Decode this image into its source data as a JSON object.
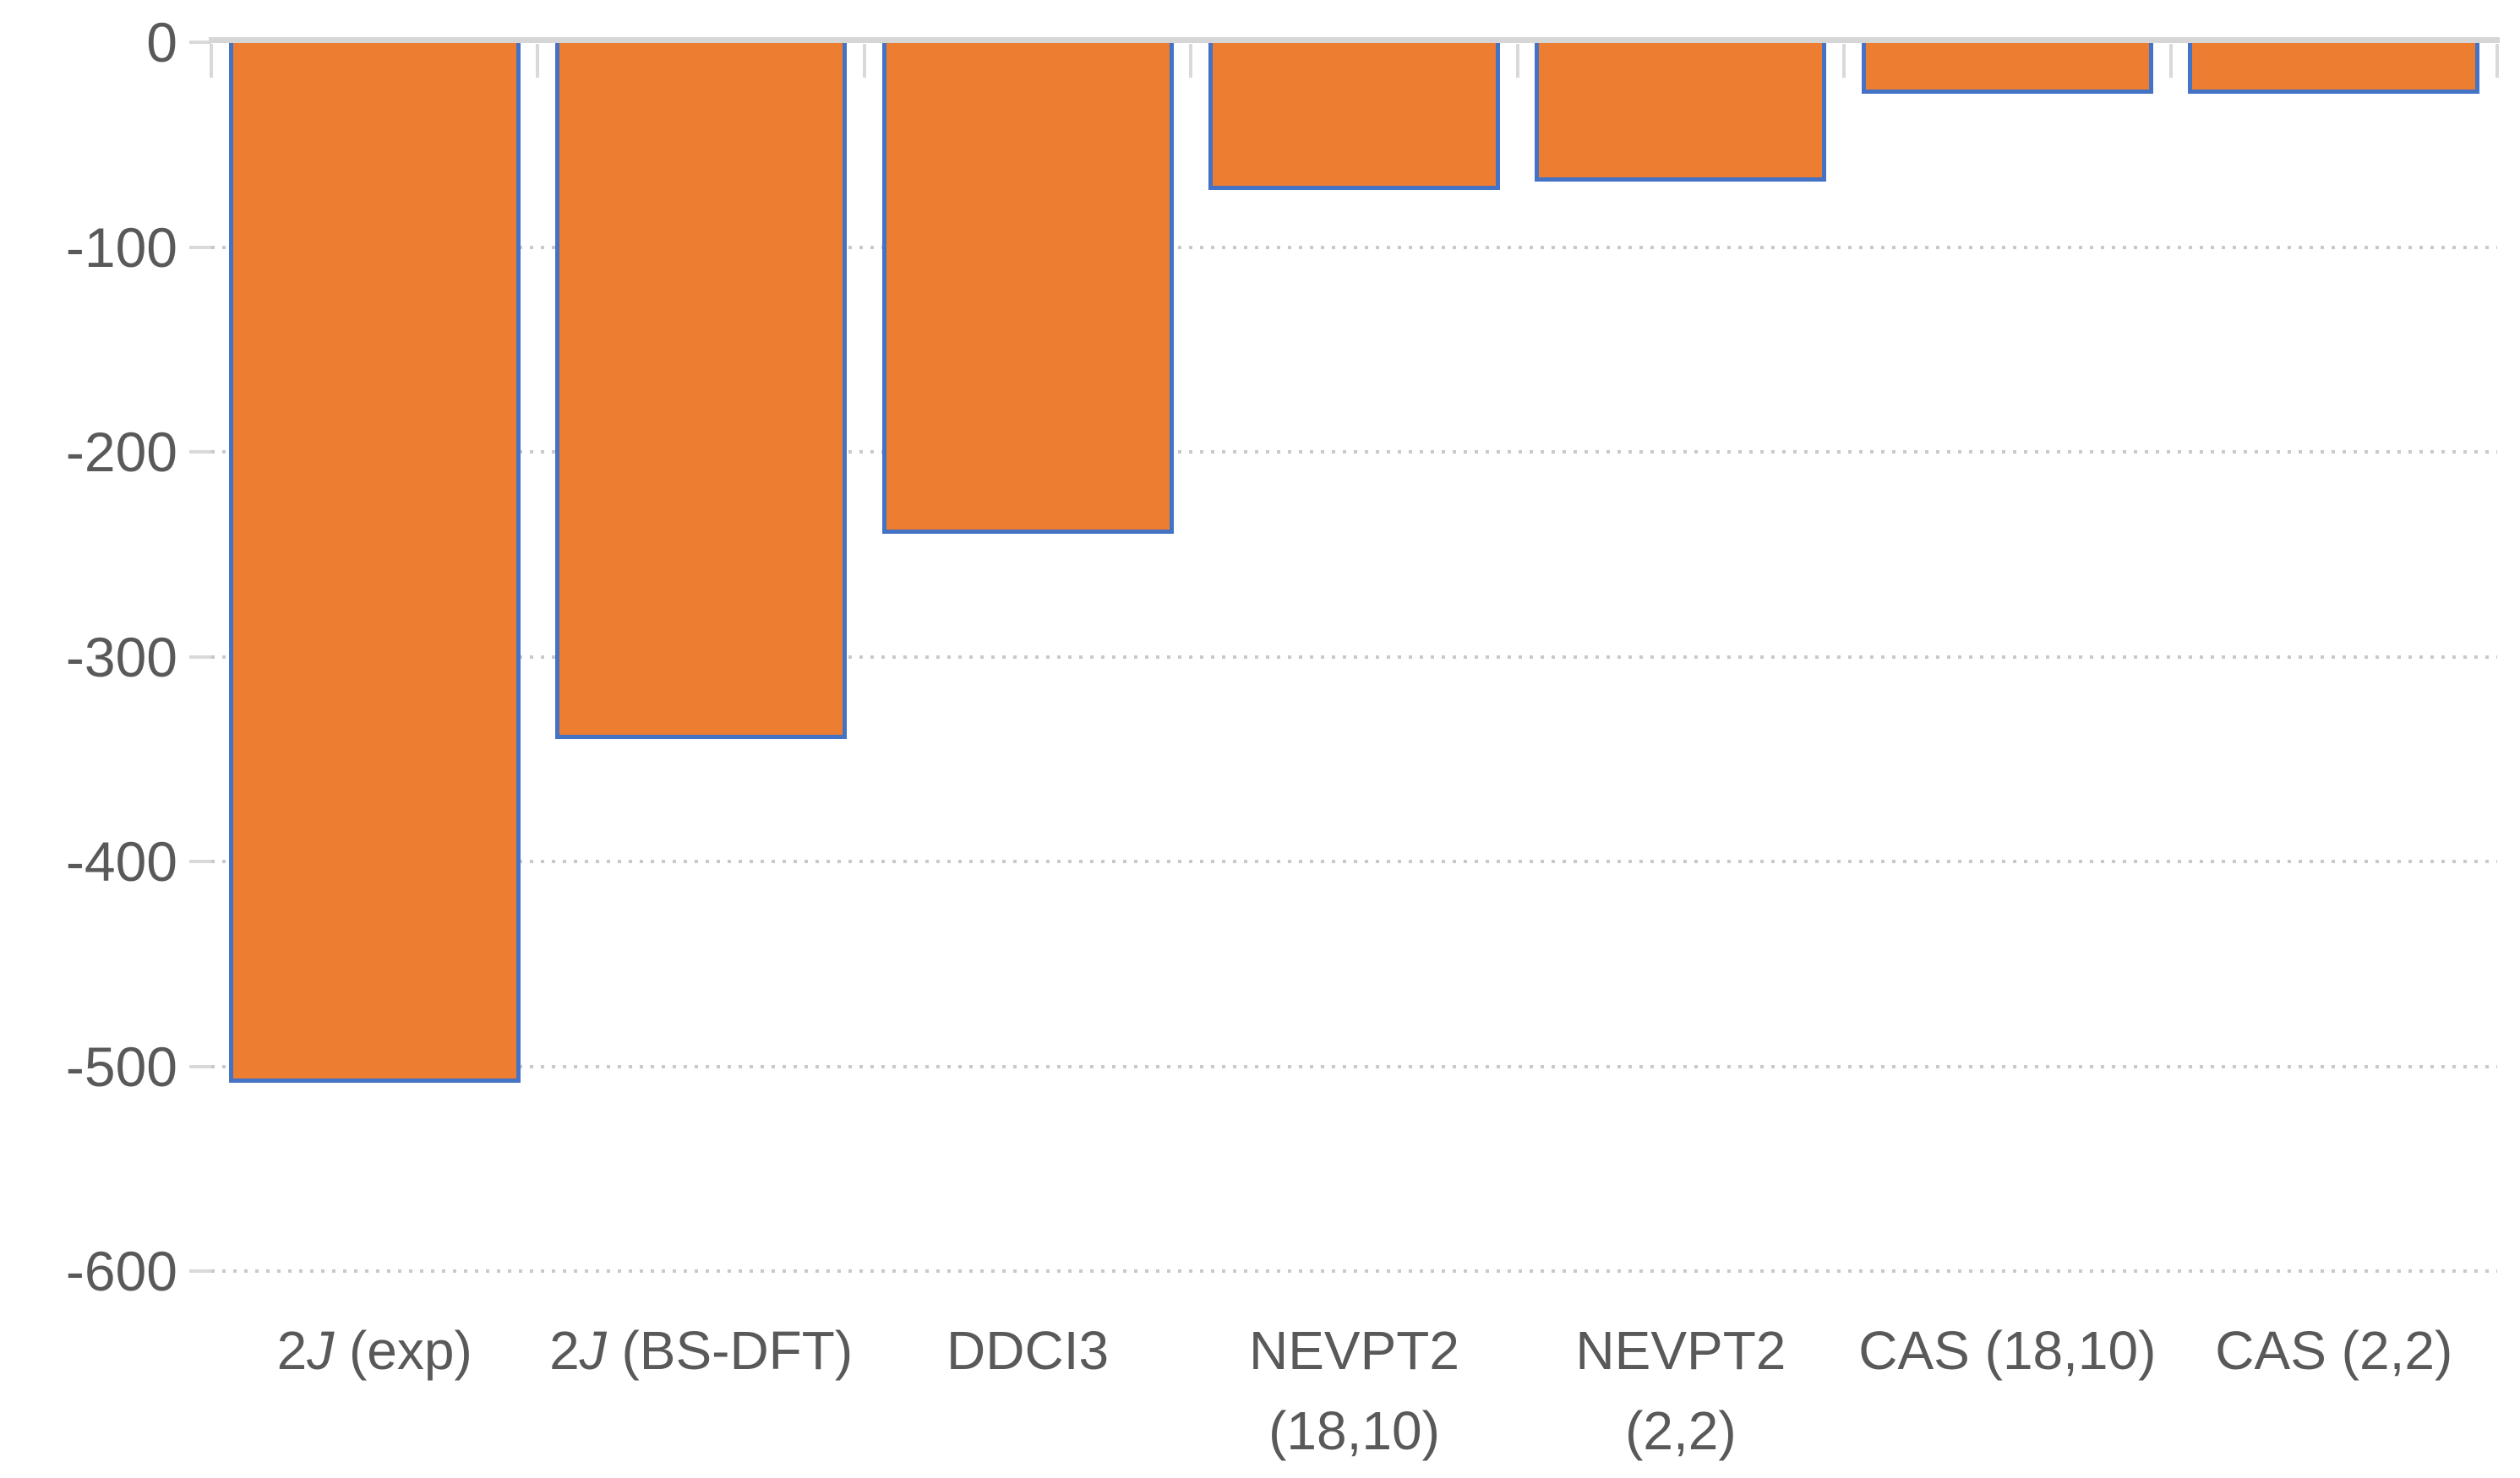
{
  "figure": {
    "background": "#FFFFFF",
    "title": "",
    "legend": "none"
  },
  "chart_data": {
    "type": "bar",
    "title": "",
    "xlabel": "",
    "ylabel": "",
    "categories": [
      "2J (exp)",
      "2J (BS-DFT)",
      "DDCI3",
      "NEVPT2 (18,10)",
      "NEVPT2 (2,2)",
      "CAS (18,10)",
      "CAS (2,2)"
    ],
    "category_label_parts": [
      [
        {
          "text": "2"
        },
        {
          "text": "J",
          "italic": true
        },
        {
          "text": " (exp)"
        }
      ],
      [
        {
          "text": "2"
        },
        {
          "text": "J",
          "italic": true
        },
        {
          "text": " (BS-DFT)"
        }
      ],
      [
        {
          "text": "DDCI3"
        }
      ],
      [
        {
          "text": "NEVPT2 (18,10)"
        }
      ],
      [
        {
          "text": "NEVPT2 (2,2)"
        }
      ],
      [
        {
          "text": "CAS (18,10)"
        }
      ],
      [
        {
          "text": "CAS (2,2)"
        }
      ]
    ],
    "values": [
      -508,
      -340,
      -240,
      -72,
      -68,
      -25,
      -25
    ],
    "ylim": [
      -600,
      0
    ],
    "yticks": [
      0,
      -100,
      -200,
      -300,
      -400,
      -500,
      -600
    ],
    "ytick_labels": [
      "0",
      "-100",
      "-200",
      "-300",
      "-400",
      "-500",
      "-600"
    ],
    "grid": {
      "horizontal": true,
      "vertical": false,
      "style": "dotted"
    },
    "legend_position": "none",
    "colors": {
      "bar_fill": "#ED7D31",
      "bar_border": "#4472C4",
      "axis_line": "#D6D6D6",
      "tick_mark": "#D9D9D9",
      "gridline": "#C9C9C9",
      "tick_label_text": "#595959"
    }
  }
}
